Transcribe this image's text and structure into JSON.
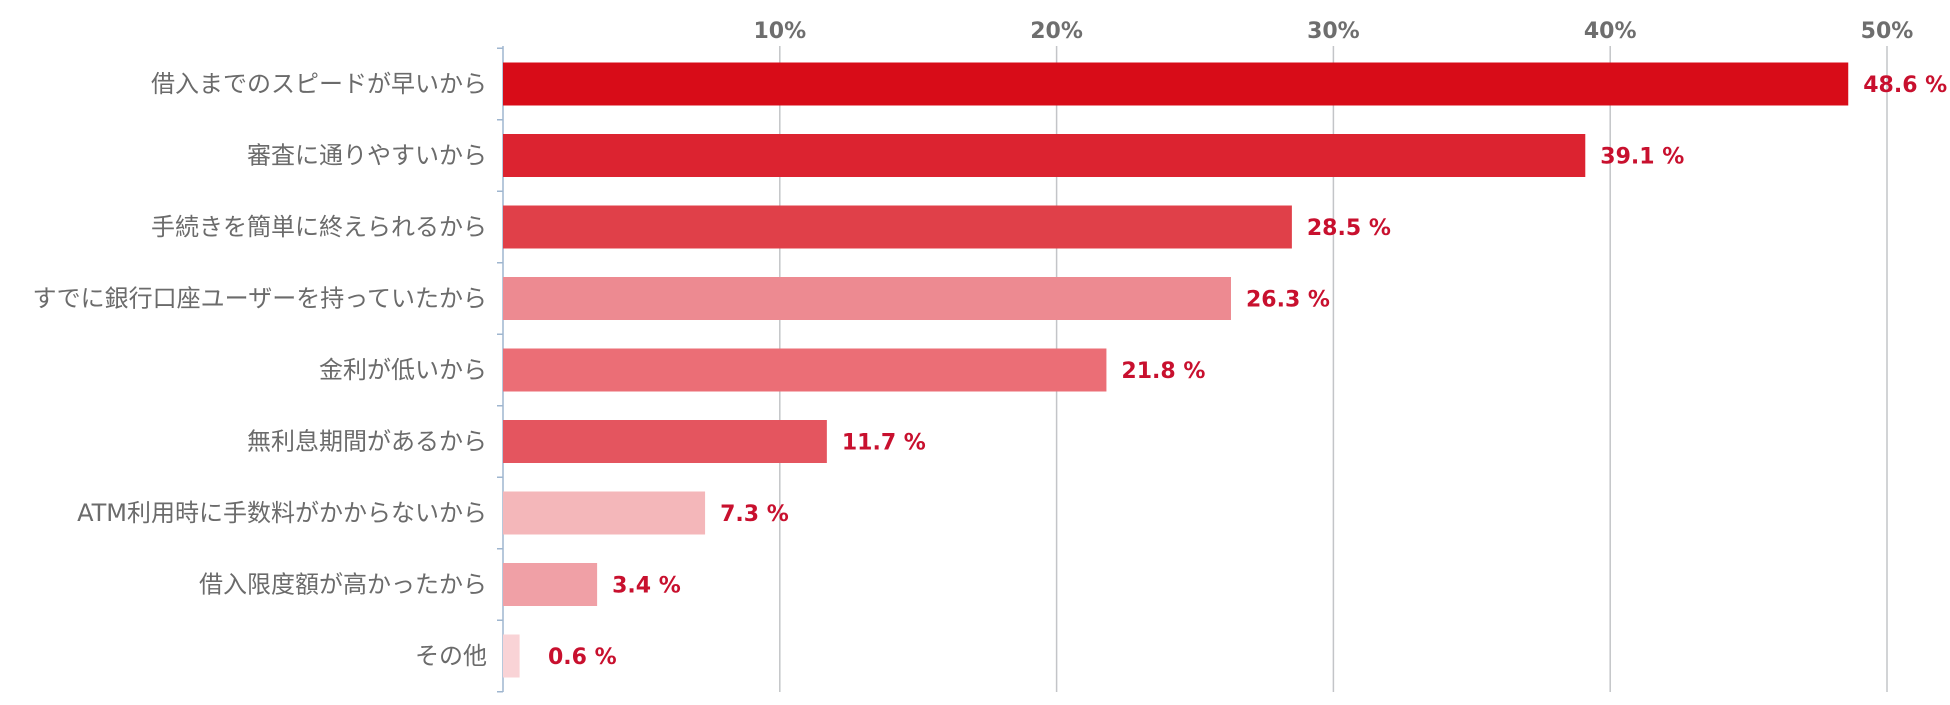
{
  "chart_data": {
    "type": "bar",
    "orientation": "horizontal",
    "title": "",
    "xlabel": "",
    "ylabel": "",
    "xlim": [
      0,
      50
    ],
    "x_ticks": [
      10,
      20,
      30,
      40,
      50
    ],
    "tick_suffix": "%",
    "value_suffix": " %",
    "grid": true,
    "categories": [
      "借入までのスピードが早いから",
      "審査に通りやすいから",
      "手続きを簡単に終えられるから",
      "すでに銀行口座ユーザーを持っていたから",
      "金利が低いから",
      "無利息期間があるから",
      "ATM利用時に手数料がかからないから",
      "借入限度額が高かったから",
      "その他"
    ],
    "values": [
      48.6,
      39.1,
      28.5,
      26.3,
      21.8,
      11.7,
      7.3,
      3.4,
      0.6
    ],
    "bar_colors": [
      "#d80c18",
      "#dc2330",
      "#e04049",
      "#ed8a91",
      "#eb6e76",
      "#e4555f",
      "#f4b7ba",
      "#f0a0a6",
      "#f9d3d6"
    ],
    "value_label_color": "#c8102e"
  }
}
